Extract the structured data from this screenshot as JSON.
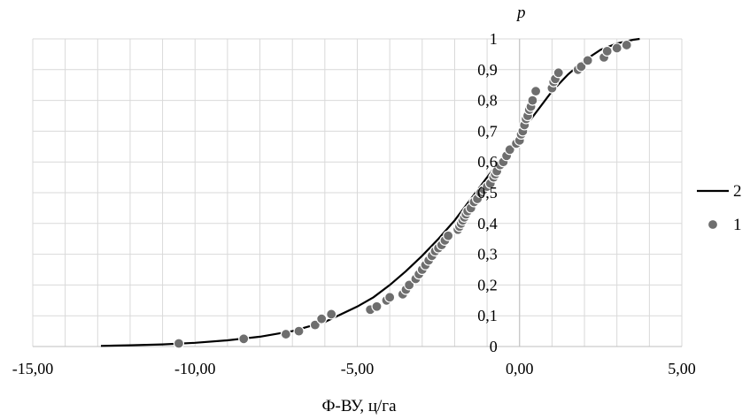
{
  "chart_data": {
    "type": "scatter",
    "title": "",
    "xlabel": "Ф-ВУ, ц/га",
    "ylabel": "p",
    "xlim": [
      -15,
      5
    ],
    "ylim": [
      0,
      1
    ],
    "grid": true,
    "legend_position": "right",
    "x_ticks": [
      "-15,00",
      "-10,00",
      "-5,00",
      "0,00",
      "5,00"
    ],
    "y_ticks": [
      "0",
      "0,1",
      "0,2",
      "0,3",
      "0,4",
      "0,5",
      "0,6",
      "0,7",
      "0,8",
      "0,9",
      "1"
    ],
    "series": [
      {
        "name": "2",
        "kind": "line",
        "color": "#000000",
        "x": [
          -12.9,
          -12,
          -11,
          -10,
          -9,
          -8,
          -7,
          -6,
          -5,
          -4.5,
          -4,
          -3.5,
          -3,
          -2.5,
          -2,
          -1.5,
          -1,
          -0.5,
          0,
          0.5,
          1,
          1.5,
          2,
          2.5,
          3,
          3.5,
          3.7
        ],
        "y": [
          0.002,
          0.004,
          0.007,
          0.012,
          0.02,
          0.032,
          0.05,
          0.08,
          0.13,
          0.16,
          0.2,
          0.245,
          0.295,
          0.35,
          0.41,
          0.48,
          0.55,
          0.62,
          0.69,
          0.76,
          0.83,
          0.885,
          0.93,
          0.965,
          0.985,
          0.997,
          1.0
        ]
      },
      {
        "name": "1",
        "kind": "scatter",
        "color": "#6e6e6e",
        "x": [
          -10.5,
          -8.5,
          -7.2,
          -6.8,
          -6.3,
          -6.1,
          -5.8,
          -4.6,
          -4.4,
          -4.1,
          -4.0,
          -3.6,
          -3.5,
          -3.4,
          -3.2,
          -3.1,
          -3.0,
          -2.9,
          -2.8,
          -2.7,
          -2.6,
          -2.5,
          -2.4,
          -2.3,
          -2.2,
          -1.9,
          -1.85,
          -1.8,
          -1.75,
          -1.7,
          -1.65,
          -1.6,
          -1.5,
          -1.4,
          -1.3,
          -1.2,
          -1.1,
          -1.0,
          -0.9,
          -0.8,
          -0.75,
          -0.7,
          -0.6,
          -0.5,
          -0.4,
          -0.3,
          -0.1,
          0.0,
          0.05,
          0.1,
          0.15,
          0.2,
          0.25,
          0.3,
          0.35,
          0.4,
          0.5,
          1.0,
          1.05,
          1.1,
          1.2,
          1.8,
          1.9,
          2.1,
          2.6,
          2.7,
          3.0,
          3.3
        ],
        "y": [
          0.01,
          0.025,
          0.04,
          0.05,
          0.07,
          0.09,
          0.105,
          0.12,
          0.13,
          0.15,
          0.16,
          0.17,
          0.185,
          0.2,
          0.22,
          0.235,
          0.25,
          0.265,
          0.28,
          0.295,
          0.31,
          0.32,
          0.33,
          0.345,
          0.36,
          0.38,
          0.39,
          0.4,
          0.41,
          0.42,
          0.43,
          0.44,
          0.45,
          0.47,
          0.48,
          0.5,
          0.51,
          0.52,
          0.53,
          0.55,
          0.56,
          0.57,
          0.59,
          0.6,
          0.62,
          0.64,
          0.66,
          0.67,
          0.69,
          0.7,
          0.72,
          0.74,
          0.75,
          0.77,
          0.78,
          0.8,
          0.83,
          0.84,
          0.86,
          0.87,
          0.89,
          0.9,
          0.91,
          0.93,
          0.94,
          0.96,
          0.97,
          0.98
        ]
      }
    ]
  }
}
